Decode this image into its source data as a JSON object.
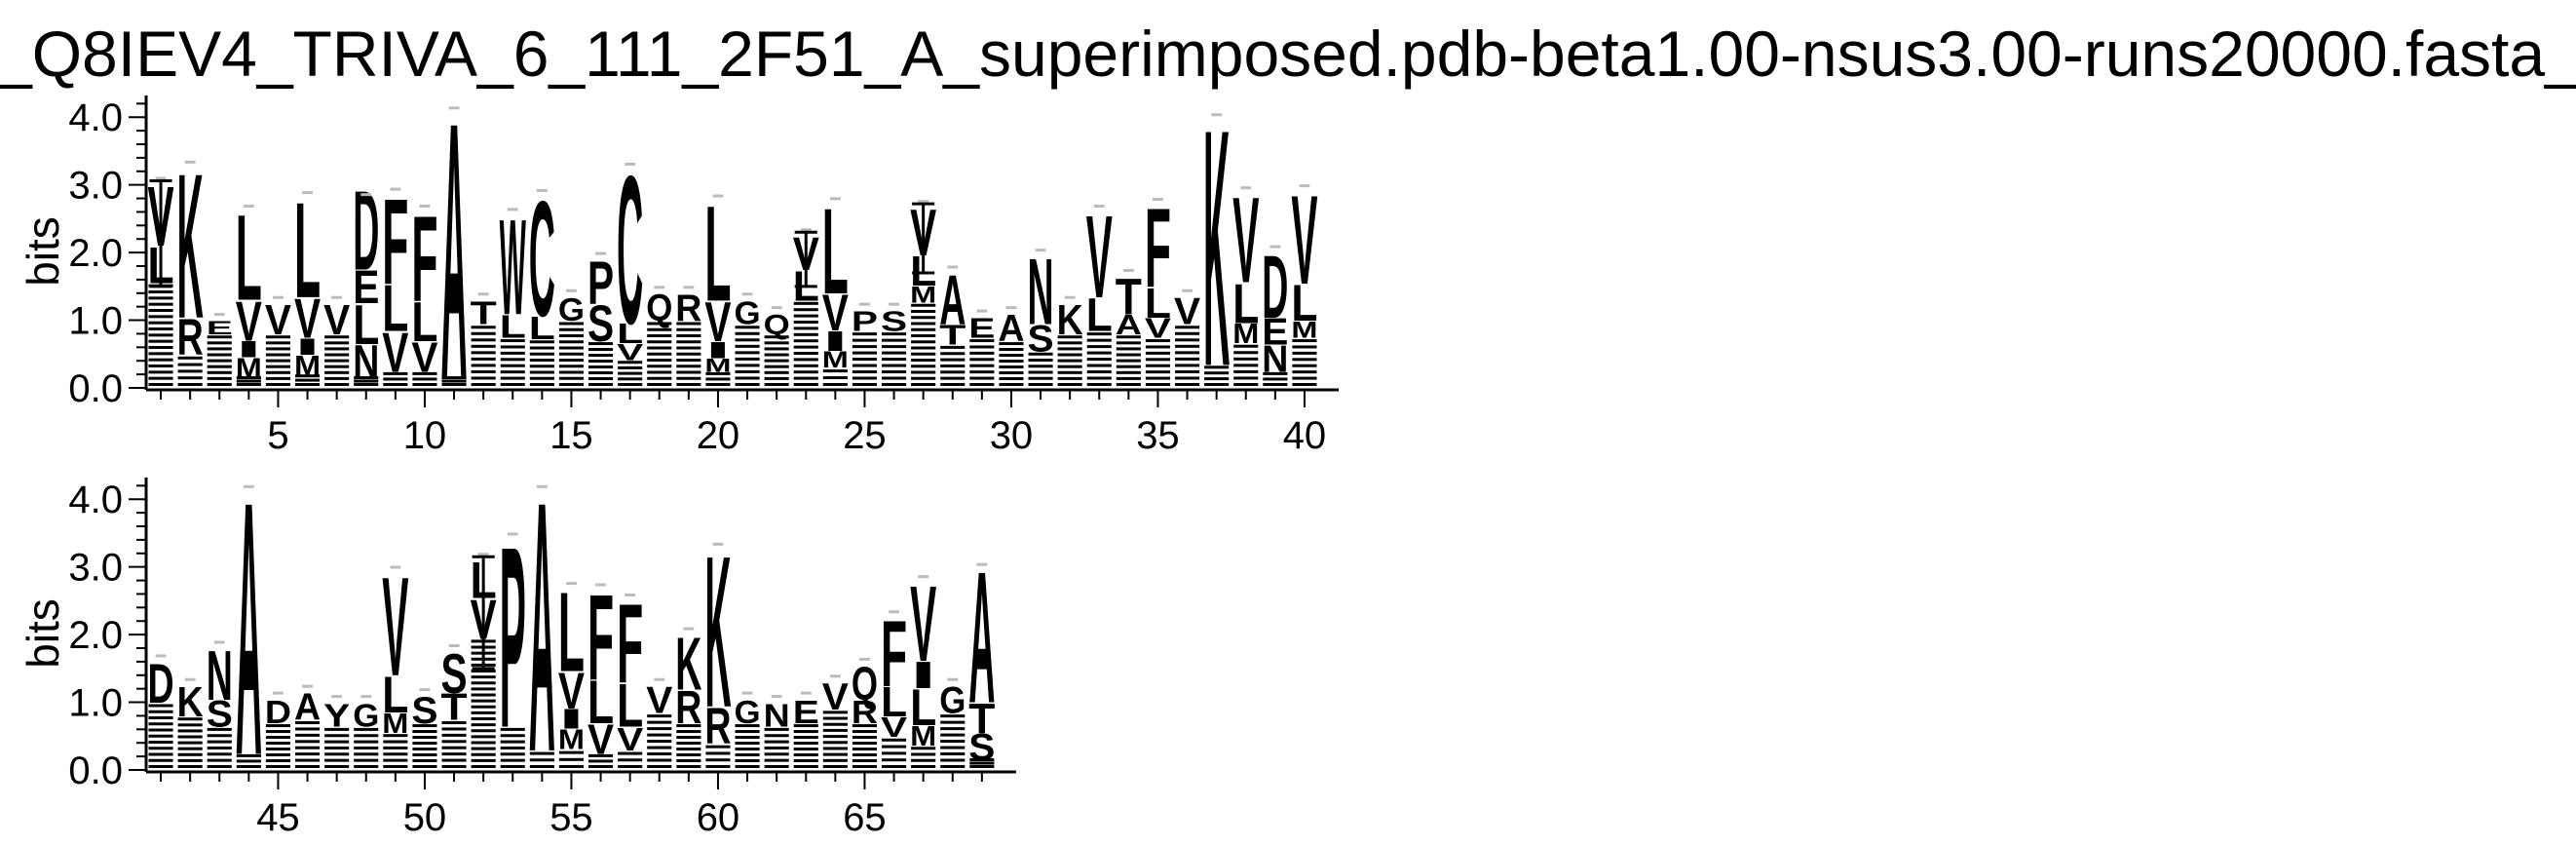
{
  "title": "_Q8IEV4_TRIVA_6_111_2F51_A_superimposed.pdb-beta1.00-nsus3.00-runs20000.fasta_",
  "chart_data": {
    "type": "sequence-logo",
    "title": "_Q8IEV4_TRIVA_6_111_2F51_A_superimposed.pdb-beta1.00-nsus3.00-runs20000.fasta_",
    "ylabel": "bits",
    "ylim": [
      0,
      4.32
    ],
    "yticks": [
      "0.0",
      "1.0",
      "2.0",
      "3.0",
      "4.0"
    ],
    "panels": [
      {
        "name": "top",
        "xstart": 1,
        "xend": 40,
        "xticks": [
          5,
          10,
          15,
          20,
          25,
          30,
          35,
          40
        ]
      },
      {
        "name": "bottom",
        "xstart": 41,
        "xend": 69,
        "xticks": [
          45,
          50,
          55,
          60,
          65
        ]
      }
    ],
    "positions": [
      {
        "pos": 1,
        "total": 3.06,
        "letters": [
          [
            "L",
            0.55
          ],
          [
            "V",
            0.9
          ]
        ],
        "err": [
          1.5,
          3.06
        ]
      },
      {
        "pos": 2,
        "total": 3.3,
        "letters": [
          [
            "R",
            0.55
          ],
          [
            "K",
            2.2
          ]
        ]
      },
      {
        "pos": 3,
        "total": 1.05,
        "letters": [
          [
            "E",
            0.2
          ]
        ]
      },
      {
        "pos": 4,
        "total": 2.65,
        "letters": [
          [
            "M",
            0.3
          ],
          [
            "I",
            0.25
          ],
          [
            "V",
            0.6
          ],
          [
            "L",
            1.3
          ]
        ]
      },
      {
        "pos": 5,
        "total": 1.3,
        "letters": [
          [
            "V",
            0.45
          ]
        ]
      },
      {
        "pos": 6,
        "total": 2.85,
        "letters": [
          [
            "M",
            0.3
          ],
          [
            "I",
            0.25
          ],
          [
            "V",
            0.6
          ],
          [
            "L",
            1.45
          ]
        ]
      },
      {
        "pos": 7,
        "total": 1.3,
        "letters": [
          [
            "V",
            0.45
          ]
        ]
      },
      {
        "pos": 8,
        "total": 2.82,
        "letters": [
          [
            "N",
            0.5
          ],
          [
            "L",
            0.6
          ],
          [
            "E",
            0.5
          ],
          [
            "D",
            1.2
          ]
        ]
      },
      {
        "pos": 9,
        "total": 2.9,
        "letters": [
          [
            "V",
            0.6
          ],
          [
            "L",
            0.7
          ],
          [
            "F",
            1.3
          ]
        ]
      },
      {
        "pos": 10,
        "total": 2.65,
        "letters": [
          [
            "V",
            0.45
          ],
          [
            "L",
            0.6
          ],
          [
            "F",
            1.3
          ]
        ]
      },
      {
        "pos": 11,
        "total": 4.1,
        "letters": [
          [
            "A",
            3.9
          ]
        ]
      },
      {
        "pos": 12,
        "total": 1.35,
        "letters": [
          [
            "T",
            0.35
          ]
        ]
      },
      {
        "pos": 13,
        "total": 2.6,
        "letters": [
          [
            "L",
            0.35
          ],
          [
            "W",
            1.45
          ]
        ]
      },
      {
        "pos": 14,
        "total": 2.88,
        "letters": [
          [
            "L",
            0.35
          ],
          [
            "C",
            1.75
          ]
        ]
      },
      {
        "pos": 15,
        "total": 1.4,
        "letters": [
          [
            "G",
            0.35
          ]
        ]
      },
      {
        "pos": 16,
        "total": 1.95,
        "letters": [
          [
            "S",
            0.55
          ],
          [
            "P",
            0.65
          ]
        ]
      },
      {
        "pos": 17,
        "total": 3.27,
        "letters": [
          [
            "V",
            0.25
          ],
          [
            "L",
            0.3
          ],
          [
            "C",
            2.25
          ]
        ]
      },
      {
        "pos": 18,
        "total": 1.45,
        "letters": [
          [
            "Q",
            0.4
          ]
        ]
      },
      {
        "pos": 19,
        "total": 1.45,
        "letters": [
          [
            "R",
            0.4
          ]
        ]
      },
      {
        "pos": 20,
        "total": 2.8,
        "letters": [
          [
            "M",
            0.2
          ],
          [
            "I",
            0.25
          ],
          [
            "V",
            0.6
          ],
          [
            "L",
            1.45
          ]
        ]
      },
      {
        "pos": 21,
        "total": 1.35,
        "letters": [
          [
            "G",
            0.35
          ]
        ]
      },
      {
        "pos": 22,
        "total": 1.15,
        "letters": [
          [
            "Q",
            0.3
          ]
        ]
      },
      {
        "pos": 23,
        "total": 2.3,
        "letters": [
          [
            "L",
            0.45
          ],
          [
            "V",
            0.5
          ]
        ],
        "err": [
          1.5,
          2.3
        ]
      },
      {
        "pos": 24,
        "total": 2.76,
        "letters": [
          [
            "M",
            0.25
          ],
          [
            "I",
            0.3
          ],
          [
            "V",
            0.55
          ],
          [
            "L",
            1.3
          ]
        ]
      },
      {
        "pos": 25,
        "total": 1.2,
        "letters": [
          [
            "P",
            0.3
          ]
        ]
      },
      {
        "pos": 26,
        "total": 1.2,
        "letters": [
          [
            "S",
            0.3
          ]
        ]
      },
      {
        "pos": 27,
        "total": 2.72,
        "letters": [
          [
            "M",
            0.25
          ],
          [
            "L",
            0.45
          ],
          [
            "V",
            0.7
          ]
        ],
        "err": [
          1.7,
          2.72
        ]
      },
      {
        "pos": 28,
        "total": 1.75,
        "letters": [
          [
            "T",
            0.3
          ],
          [
            "A",
            0.75
          ]
        ]
      },
      {
        "pos": 29,
        "total": 1.1,
        "letters": [
          [
            "E",
            0.3
          ]
        ]
      },
      {
        "pos": 30,
        "total": 1.15,
        "letters": [
          [
            "A",
            0.4
          ]
        ]
      },
      {
        "pos": 31,
        "total": 2.0,
        "letters": [
          [
            "S",
            0.4
          ],
          [
            "N",
            1.0
          ]
        ]
      },
      {
        "pos": 32,
        "total": 1.3,
        "letters": [
          [
            "K",
            0.45
          ]
        ]
      },
      {
        "pos": 33,
        "total": 2.65,
        "letters": [
          [
            "L",
            0.5
          ],
          [
            "V",
            1.25
          ]
        ]
      },
      {
        "pos": 34,
        "total": 1.7,
        "letters": [
          [
            "A",
            0.3
          ],
          [
            "T",
            0.55
          ]
        ]
      },
      {
        "pos": 35,
        "total": 2.75,
        "letters": [
          [
            "V",
            0.3
          ],
          [
            "L",
            0.45
          ],
          [
            "F",
            1.2
          ]
        ]
      },
      {
        "pos": 36,
        "total": 1.4,
        "letters": [
          [
            "V",
            0.4
          ]
        ]
      },
      {
        "pos": 37,
        "total": 4.0,
        "letters": [
          [
            "K",
            3.6
          ]
        ]
      },
      {
        "pos": 38,
        "total": 2.92,
        "letters": [
          [
            "M",
            0.3
          ],
          [
            "L",
            0.6
          ],
          [
            "V",
            1.3
          ]
        ]
      },
      {
        "pos": 39,
        "total": 2.05,
        "letters": [
          [
            "N",
            0.4
          ],
          [
            "E",
            0.4
          ],
          [
            "D",
            0.95
          ]
        ]
      },
      {
        "pos": 40,
        "total": 2.95,
        "letters": [
          [
            "M",
            0.25
          ],
          [
            "L",
            0.55
          ],
          [
            "V",
            1.35
          ]
        ]
      },
      {
        "pos": 41,
        "total": 1.65,
        "letters": [
          [
            "D",
            0.6
          ]
        ]
      },
      {
        "pos": 42,
        "total": 1.3,
        "letters": [
          [
            "K",
            0.45
          ]
        ]
      },
      {
        "pos": 43,
        "total": 1.85,
        "letters": [
          [
            "S",
            0.4
          ],
          [
            "N",
            0.75
          ]
        ]
      },
      {
        "pos": 44,
        "total": 4.15,
        "letters": [
          [
            "A",
            3.85
          ]
        ]
      },
      {
        "pos": 45,
        "total": 1.1,
        "letters": [
          [
            "D",
            0.35
          ]
        ]
      },
      {
        "pos": 46,
        "total": 1.2,
        "letters": [
          [
            "A",
            0.4
          ]
        ]
      },
      {
        "pos": 47,
        "total": 1.05,
        "letters": [
          [
            "Y",
            0.35
          ]
        ]
      },
      {
        "pos": 48,
        "total": 1.05,
        "letters": [
          [
            "G",
            0.35
          ]
        ]
      },
      {
        "pos": 49,
        "total": 2.96,
        "letters": [
          [
            "M",
            0.3
          ],
          [
            "L",
            0.55
          ],
          [
            "V",
            1.5
          ]
        ]
      },
      {
        "pos": 50,
        "total": 1.15,
        "letters": [
          [
            "S",
            0.4
          ]
        ]
      },
      {
        "pos": 51,
        "total": 1.8,
        "letters": [
          [
            "T",
            0.4
          ],
          [
            "S",
            0.6
          ]
        ]
      },
      {
        "pos": 52,
        "total": 3.15,
        "letters": [
          [
            "V",
            0.6
          ],
          [
            "L",
            0.55
          ]
        ],
        "err": [
          1.5,
          3.15
        ]
      },
      {
        "pos": 53,
        "total": 3.45,
        "letters": [
          [
            "P",
            2.75
          ]
        ]
      },
      {
        "pos": 54,
        "total": 4.15,
        "letters": [
          [
            "A",
            3.8
          ]
        ]
      },
      {
        "pos": 55,
        "total": 2.72,
        "letters": [
          [
            "M",
            0.3
          ],
          [
            "I",
            0.3
          ],
          [
            "V",
            0.55
          ],
          [
            "L",
            1.2
          ]
        ]
      },
      {
        "pos": 56,
        "total": 2.7,
        "letters": [
          [
            "V",
            0.45
          ],
          [
            "L",
            0.65
          ],
          [
            "F",
            1.3
          ]
        ]
      },
      {
        "pos": 57,
        "total": 2.55,
        "letters": [
          [
            "V",
            0.35
          ],
          [
            "L",
            0.65
          ],
          [
            "F",
            1.2
          ]
        ]
      },
      {
        "pos": 58,
        "total": 1.3,
        "letters": [
          [
            "V",
            0.4
          ]
        ]
      },
      {
        "pos": 59,
        "total": 2.05,
        "letters": [
          [
            "R",
            0.5
          ],
          [
            "K",
            0.8
          ]
        ]
      },
      {
        "pos": 60,
        "total": 3.3,
        "letters": [
          [
            "R",
            0.55
          ],
          [
            "K",
            2.3
          ]
        ]
      },
      {
        "pos": 61,
        "total": 1.1,
        "letters": [
          [
            "G",
            0.35
          ]
        ]
      },
      {
        "pos": 62,
        "total": 1.05,
        "letters": [
          [
            "N",
            0.35
          ]
        ]
      },
      {
        "pos": 63,
        "total": 1.1,
        "letters": [
          [
            "E",
            0.35
          ]
        ]
      },
      {
        "pos": 64,
        "total": 1.35,
        "letters": [
          [
            "V",
            0.4
          ]
        ]
      },
      {
        "pos": 65,
        "total": 1.6,
        "letters": [
          [
            "R",
            0.35
          ],
          [
            "Q",
            0.5
          ]
        ]
      },
      {
        "pos": 66,
        "total": 2.3,
        "letters": [
          [
            "V",
            0.3
          ],
          [
            "L",
            0.45
          ],
          [
            "F",
            1.0
          ]
        ]
      },
      {
        "pos": 67,
        "total": 2.82,
        "letters": [
          [
            "M",
            0.3
          ],
          [
            "L",
            0.55
          ],
          [
            "I",
            0.4
          ],
          [
            "V",
            1.15
          ]
        ]
      },
      {
        "pos": 68,
        "total": 1.3,
        "letters": [
          [
            "G",
            0.4
          ]
        ]
      },
      {
        "pos": 69,
        "total": 3.0,
        "letters": [
          [
            "S",
            0.4
          ],
          [
            "T",
            0.45
          ],
          [
            "A",
            2.0
          ]
        ]
      }
    ]
  }
}
